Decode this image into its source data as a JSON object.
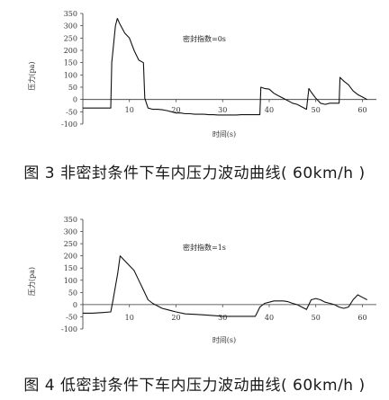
{
  "chart_data": [
    {
      "type": "line",
      "annotation": "密封指数=0s",
      "xlabel": "时间(s)",
      "ylabel": "压力(pa)",
      "caption": "图 3 非密封条件下车内压力波动曲线( 60km/h )",
      "xlim": [
        0,
        63
      ],
      "ylim": [
        -100,
        350
      ],
      "x_ticks": [
        10,
        20,
        30,
        40,
        50,
        60
      ],
      "x_tick_labels": [
        "10",
        "20",
        "30",
        "40",
        "50",
        "60"
      ],
      "y_ticks": [
        350,
        300,
        250,
        200,
        150,
        100,
        50,
        0,
        -50,
        -100
      ],
      "grid": false,
      "x": [
        0,
        2,
        4,
        6,
        6.2,
        7,
        7.4,
        8,
        9,
        10,
        11,
        12,
        13,
        13.3,
        14,
        15,
        16,
        17,
        18,
        19,
        20,
        21,
        22,
        23,
        24,
        25,
        26,
        27,
        28,
        29,
        30,
        31,
        32,
        33,
        34,
        35,
        36,
        37,
        38,
        38.2,
        39,
        40,
        41,
        42,
        43,
        44,
        45,
        46,
        47,
        48,
        48.5,
        49,
        50,
        51,
        52,
        53,
        54,
        55,
        55.2,
        56,
        57,
        58,
        59,
        60,
        61
      ],
      "y": [
        -35,
        -35,
        -35,
        -35,
        150,
        300,
        330,
        305,
        270,
        250,
        200,
        160,
        150,
        5,
        -35,
        -40,
        -40,
        -42,
        -45,
        -50,
        -55,
        -55,
        -58,
        -58,
        -60,
        -60,
        -60,
        -62,
        -62,
        -63,
        -63,
        -63,
        -63,
        -63,
        -62,
        -62,
        -62,
        -62,
        -62,
        50,
        45,
        42,
        25,
        15,
        5,
        -5,
        -15,
        -20,
        -30,
        -40,
        45,
        30,
        5,
        -15,
        -20,
        -15,
        -15,
        -15,
        90,
        75,
        60,
        35,
        20,
        10,
        0
      ]
    },
    {
      "type": "line",
      "annotation": "密封指数=1s",
      "xlabel": "时间(s)",
      "ylabel": "压力(pa)",
      "caption": "图 4 低密封条件下车内压力波动曲线( 60km/h )",
      "xlim": [
        0,
        63
      ],
      "ylim": [
        -100,
        350
      ],
      "x_ticks": [
        10,
        20,
        30,
        40,
        50,
        60
      ],
      "x_tick_labels": [
        "10",
        "20",
        "30",
        "40",
        "50",
        "60"
      ],
      "y_ticks": [
        350,
        300,
        250,
        200,
        150,
        100,
        50,
        0,
        -50,
        -100
      ],
      "grid": false,
      "x": [
        0,
        2,
        4,
        6,
        6.5,
        7.5,
        8,
        9,
        10,
        11,
        12,
        13,
        14,
        15,
        16,
        17,
        18,
        19,
        20,
        22,
        24,
        26,
        28,
        30,
        32,
        34,
        36,
        37,
        37.5,
        38,
        39,
        40,
        41,
        42,
        43,
        44,
        45,
        46,
        47,
        48,
        49,
        50,
        51,
        52,
        53,
        54,
        55,
        56,
        57,
        58,
        59,
        60,
        61
      ],
      "y": [
        -35,
        -35,
        -33,
        -30,
        20,
        130,
        200,
        180,
        160,
        140,
        100,
        60,
        20,
        5,
        -5,
        -15,
        -20,
        -25,
        -30,
        -38,
        -40,
        -42,
        -45,
        -48,
        -48,
        -48,
        -48,
        -48,
        -30,
        -10,
        5,
        10,
        15,
        15,
        15,
        12,
        5,
        0,
        -10,
        -20,
        20,
        25,
        20,
        10,
        5,
        0,
        -10,
        -15,
        -10,
        20,
        40,
        30,
        20
      ]
    }
  ]
}
